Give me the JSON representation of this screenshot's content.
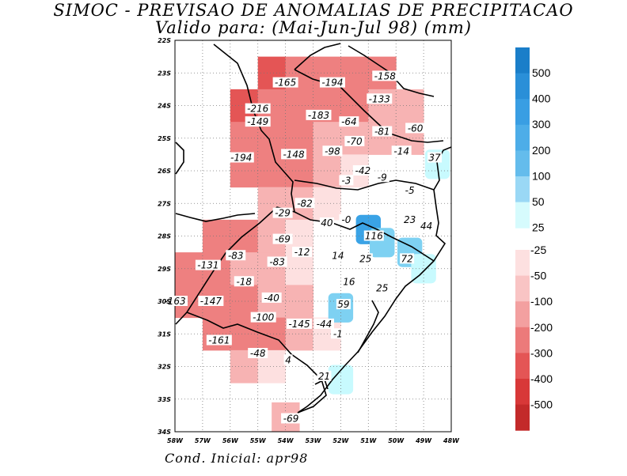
{
  "title": "SIMOC - PREVISAO DE ANOMALIAS DE PRECIPITACAO",
  "subtitle": "Valido para: (Mai-Jun-Jul 98) (mm)",
  "footer": "Cond. Inicial: apr98",
  "map": {
    "lat_ticks": [
      "22S",
      "23S",
      "24S",
      "25S",
      "26S",
      "27S",
      "28S",
      "29S",
      "30S",
      "31S",
      "32S",
      "33S",
      "34S"
    ],
    "lon_ticks": [
      "58W",
      "57W",
      "56W",
      "55W",
      "54W",
      "53W",
      "52W",
      "51W",
      "50W",
      "49W",
      "48W"
    ],
    "lon_range": [
      -58,
      -48
    ],
    "lat_range": [
      -34,
      -22
    ],
    "grid": true,
    "values": [
      {
        "label": "-165",
        "lon": -54.0,
        "lat": -23.3
      },
      {
        "label": "-194",
        "lon": -52.3,
        "lat": -23.3
      },
      {
        "label": "-158",
        "lon": -50.4,
        "lat": -23.1
      },
      {
        "label": "-133",
        "lon": -50.6,
        "lat": -23.8
      },
      {
        "label": "-216",
        "lon": -55.0,
        "lat": -24.1
      },
      {
        "label": "-183",
        "lon": -52.8,
        "lat": -24.3
      },
      {
        "label": "-149",
        "lon": -55.0,
        "lat": -24.5
      },
      {
        "label": "-64",
        "lon": -51.7,
        "lat": -24.5
      },
      {
        "label": "-81",
        "lon": -50.5,
        "lat": -24.8
      },
      {
        "label": "-60",
        "lon": -49.3,
        "lat": -24.7
      },
      {
        "label": "-70",
        "lon": -51.5,
        "lat": -25.1
      },
      {
        "label": "-98",
        "lon": -52.3,
        "lat": -25.4
      },
      {
        "label": "-14",
        "lon": -49.8,
        "lat": -25.4
      },
      {
        "label": "-194",
        "lon": -55.6,
        "lat": -25.6
      },
      {
        "label": "-148",
        "lon": -53.7,
        "lat": -25.5
      },
      {
        "label": "37",
        "lon": -48.6,
        "lat": -25.6
      },
      {
        "label": "-42",
        "lon": -51.2,
        "lat": -26.0
      },
      {
        "label": "-9",
        "lon": -50.5,
        "lat": -26.2
      },
      {
        "label": "-3",
        "lon": -51.8,
        "lat": -26.3
      },
      {
        "label": "-5",
        "lon": -49.5,
        "lat": -26.6
      },
      {
        "label": "-82",
        "lon": -53.3,
        "lat": -27.0
      },
      {
        "label": "-29",
        "lon": -54.1,
        "lat": -27.3
      },
      {
        "label": "40",
        "lon": -52.5,
        "lat": -27.6
      },
      {
        "label": "-0",
        "lon": -51.8,
        "lat": -27.5
      },
      {
        "label": "23",
        "lon": -49.5,
        "lat": -27.5
      },
      {
        "label": "116",
        "lon": -50.8,
        "lat": -28.0
      },
      {
        "label": "44",
        "lon": -48.9,
        "lat": -27.7
      },
      {
        "label": "-69",
        "lon": -54.1,
        "lat": -28.1
      },
      {
        "label": "-83",
        "lon": -55.8,
        "lat": -28.6
      },
      {
        "label": "-12",
        "lon": -53.4,
        "lat": -28.5
      },
      {
        "label": "14",
        "lon": -52.1,
        "lat": -28.6
      },
      {
        "label": "25",
        "lon": -51.1,
        "lat": -28.7
      },
      {
        "label": "72",
        "lon": -49.6,
        "lat": -28.7
      },
      {
        "label": "-83",
        "lon": -54.3,
        "lat": -28.8
      },
      {
        "label": "-131",
        "lon": -56.8,
        "lat": -28.9
      },
      {
        "label": "-18",
        "lon": -55.5,
        "lat": -29.4
      },
      {
        "label": "16",
        "lon": -51.7,
        "lat": -29.4
      },
      {
        "label": "25",
        "lon": -50.5,
        "lat": -29.6
      },
      {
        "label": "-40",
        "lon": -54.5,
        "lat": -29.9
      },
      {
        "label": "-163",
        "lon": -58.0,
        "lat": -30.0
      },
      {
        "label": "-147",
        "lon": -56.7,
        "lat": -30.0
      },
      {
        "label": "59",
        "lon": -51.9,
        "lat": -30.1
      },
      {
        "label": "-100",
        "lon": -54.8,
        "lat": -30.5
      },
      {
        "label": "-145",
        "lon": -53.5,
        "lat": -30.7
      },
      {
        "label": "-44",
        "lon": -52.6,
        "lat": -30.7
      },
      {
        "label": "-1",
        "lon": -52.1,
        "lat": -31.0
      },
      {
        "label": "-161",
        "lon": -56.4,
        "lat": -31.2
      },
      {
        "label": "-48",
        "lon": -55.0,
        "lat": -31.6
      },
      {
        "label": "4",
        "lon": -53.9,
        "lat": -31.8
      },
      {
        "label": "21",
        "lon": -52.6,
        "lat": -32.3
      },
      {
        "label": "-69",
        "lon": -53.8,
        "lat": -33.6
      }
    ],
    "cells": [
      {
        "lon": -54.5,
        "lat": -23,
        "c": 3
      },
      {
        "lon": -53.5,
        "lat": -23,
        "c": 2
      },
      {
        "lon": -52.5,
        "lat": -23,
        "c": 2
      },
      {
        "lon": -51.5,
        "lat": -23,
        "c": 2
      },
      {
        "lon": -50.5,
        "lat": -23,
        "c": 2
      },
      {
        "lon": -55.5,
        "lat": -24,
        "c": 3
      },
      {
        "lon": -54.5,
        "lat": -24,
        "c": 2
      },
      {
        "lon": -53.5,
        "lat": -24,
        "c": 2
      },
      {
        "lon": -52.5,
        "lat": -24,
        "c": 2
      },
      {
        "lon": -51.5,
        "lat": -24,
        "c": 2
      },
      {
        "lon": -50.5,
        "lat": -24,
        "c": 1
      },
      {
        "lon": -49.5,
        "lat": -24,
        "c": 1
      },
      {
        "lon": -55.5,
        "lat": -25,
        "c": 2
      },
      {
        "lon": -54.5,
        "lat": -25,
        "c": 2
      },
      {
        "lon": -53.5,
        "lat": -25,
        "c": 2
      },
      {
        "lon": -52.5,
        "lat": -25,
        "c": 1
      },
      {
        "lon": -51.5,
        "lat": -25,
        "c": 1
      },
      {
        "lon": -50.5,
        "lat": -25,
        "c": 1
      },
      {
        "lon": -49.5,
        "lat": -25,
        "c": 1
      },
      {
        "lon": -55.5,
        "lat": -26,
        "c": 2
      },
      {
        "lon": -54.5,
        "lat": -26,
        "c": 2
      },
      {
        "lon": -53.5,
        "lat": -26,
        "c": 2
      },
      {
        "lon": -52.5,
        "lat": -26,
        "c": 1
      },
      {
        "lon": -51.5,
        "lat": -26,
        "c": 0
      },
      {
        "lon": -54.5,
        "lat": -27,
        "c": 1
      },
      {
        "lon": -53.5,
        "lat": -27,
        "c": 1
      },
      {
        "lon": -52.5,
        "lat": -27,
        "c": 0
      },
      {
        "lon": -56.5,
        "lat": -28,
        "c": 2
      },
      {
        "lon": -55.5,
        "lat": -28,
        "c": 2
      },
      {
        "lon": -54.5,
        "lat": -28,
        "c": 1
      },
      {
        "lon": -53.5,
        "lat": -28,
        "c": 0
      },
      {
        "lon": -57.5,
        "lat": -29,
        "c": 2
      },
      {
        "lon": -56.5,
        "lat": -29,
        "c": 2
      },
      {
        "lon": -55.5,
        "lat": -29,
        "c": 1
      },
      {
        "lon": -54.5,
        "lat": -29,
        "c": 1
      },
      {
        "lon": -53.5,
        "lat": -29,
        "c": 0
      },
      {
        "lon": -57.5,
        "lat": -30,
        "c": 2
      },
      {
        "lon": -56.5,
        "lat": -30,
        "c": 2
      },
      {
        "lon": -55.5,
        "lat": -30,
        "c": 2
      },
      {
        "lon": -54.5,
        "lat": -30,
        "c": 1
      },
      {
        "lon": -53.5,
        "lat": -30,
        "c": 1
      },
      {
        "lon": -56.5,
        "lat": -31,
        "c": 2
      },
      {
        "lon": -55.5,
        "lat": -31,
        "c": 2
      },
      {
        "lon": -54.5,
        "lat": -31,
        "c": 2
      },
      {
        "lon": -53.5,
        "lat": -31,
        "c": 1
      },
      {
        "lon": -52.5,
        "lat": -31,
        "c": 0
      },
      {
        "lon": -55.5,
        "lat": -32,
        "c": 1
      },
      {
        "lon": -54.5,
        "lat": -32,
        "c": 0
      },
      {
        "lon": -54,
        "lat": -33.6,
        "c": 1
      }
    ],
    "pos_cells": [
      {
        "lon": -51,
        "lat": -27.8,
        "c": 2
      },
      {
        "lon": -50.5,
        "lat": -28.2,
        "c": 1
      },
      {
        "lon": -49.5,
        "lat": -28.5,
        "c": 1
      },
      {
        "lon": -49,
        "lat": -29,
        "c": 0
      },
      {
        "lon": -52,
        "lat": -30.2,
        "c": 1
      },
      {
        "lon": -52,
        "lat": -32.4,
        "c": 0
      },
      {
        "lon": -48.5,
        "lat": -25.8,
        "c": 0
      }
    ],
    "colors": {
      "neg": [
        "#fde0e0",
        "#f7b3b3",
        "#ee8080",
        "#e45555"
      ],
      "pos": [
        "#c8fafe",
        "#7ed1f2",
        "#3aa3e6"
      ]
    }
  },
  "colorbar": {
    "pos_labels": [
      "500",
      "400",
      "300",
      "200",
      "100",
      "50",
      "25"
    ],
    "neg_labels": [
      "-25",
      "-50",
      "-100",
      "-200",
      "-300",
      "-400",
      "-500"
    ],
    "pos_colors": [
      "#1a7ec9",
      "#2a8fd8",
      "#399ee3",
      "#4dade8",
      "#64bcec",
      "#9ad8f5",
      "#d6fbfd"
    ],
    "neg_colors": [
      "#fde0e0",
      "#f9c4c4",
      "#f3a0a0",
      "#ec7a7a",
      "#e45555",
      "#d83838",
      "#c32a2a"
    ]
  }
}
